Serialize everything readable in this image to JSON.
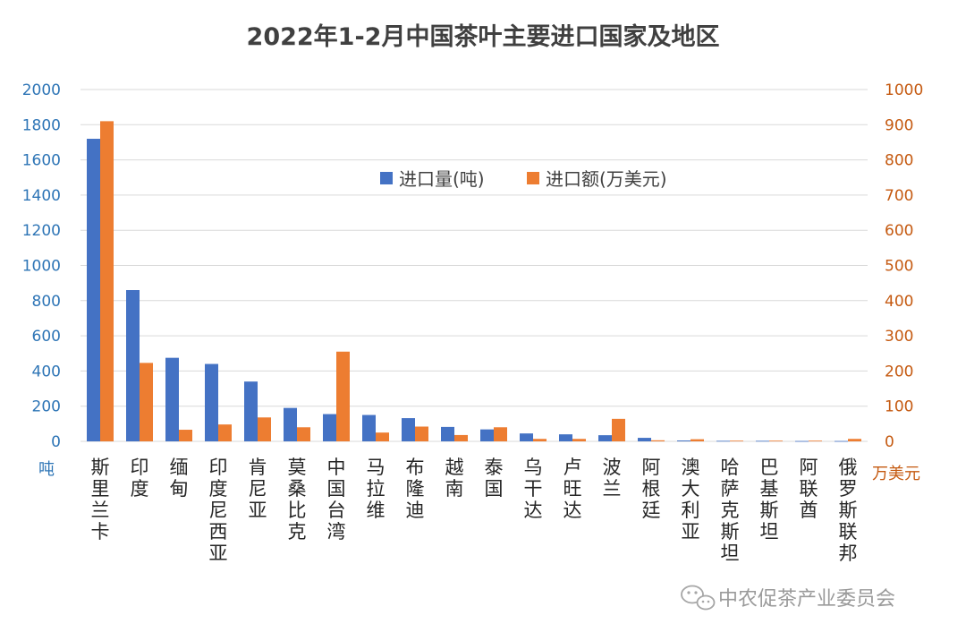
{
  "chart_data": {
    "type": "bar",
    "title": "2022年1-2月中国茶叶主要进口国家及地区",
    "categories": [
      "斯里兰卡",
      "印度",
      "缅甸",
      "印度尼西亚",
      "肯尼亚",
      "莫桑比克",
      "中国台湾",
      "马拉维",
      "布隆迪",
      "越南",
      "泰国",
      "乌干达",
      "卢旺达",
      "波兰",
      "阿根廷",
      "澳大利亚",
      "哈萨克斯坦",
      "巴基斯坦",
      "阿联酋",
      "俄罗斯联邦"
    ],
    "series": [
      {
        "name": "进口量(吨)",
        "axis": "left",
        "color": "#4472c4",
        "values": [
          1720,
          860,
          475,
          440,
          340,
          190,
          155,
          150,
          132,
          82,
          68,
          45,
          40,
          35,
          20,
          5,
          3,
          3,
          2,
          2
        ]
      },
      {
        "name": "进口额(万美元)",
        "axis": "right",
        "color": "#ed7d31",
        "values": [
          910,
          223,
          33,
          48,
          68,
          40,
          255,
          25,
          42,
          18,
          40,
          7,
          7,
          64,
          3,
          6,
          2,
          2,
          2,
          7
        ]
      }
    ],
    "y_left": {
      "label": "吨",
      "ylim": [
        0,
        2000
      ],
      "ticks": [
        0,
        200,
        400,
        600,
        800,
        1000,
        1200,
        1400,
        1600,
        1800,
        2000
      ]
    },
    "y_right": {
      "label": "万美元",
      "ylim": [
        0,
        1000
      ],
      "ticks": [
        0,
        100,
        200,
        300,
        400,
        500,
        600,
        700,
        800,
        900,
        1000
      ]
    },
    "grid": true,
    "legend": "top-center",
    "watermark": "中农促茶产业委员会"
  }
}
